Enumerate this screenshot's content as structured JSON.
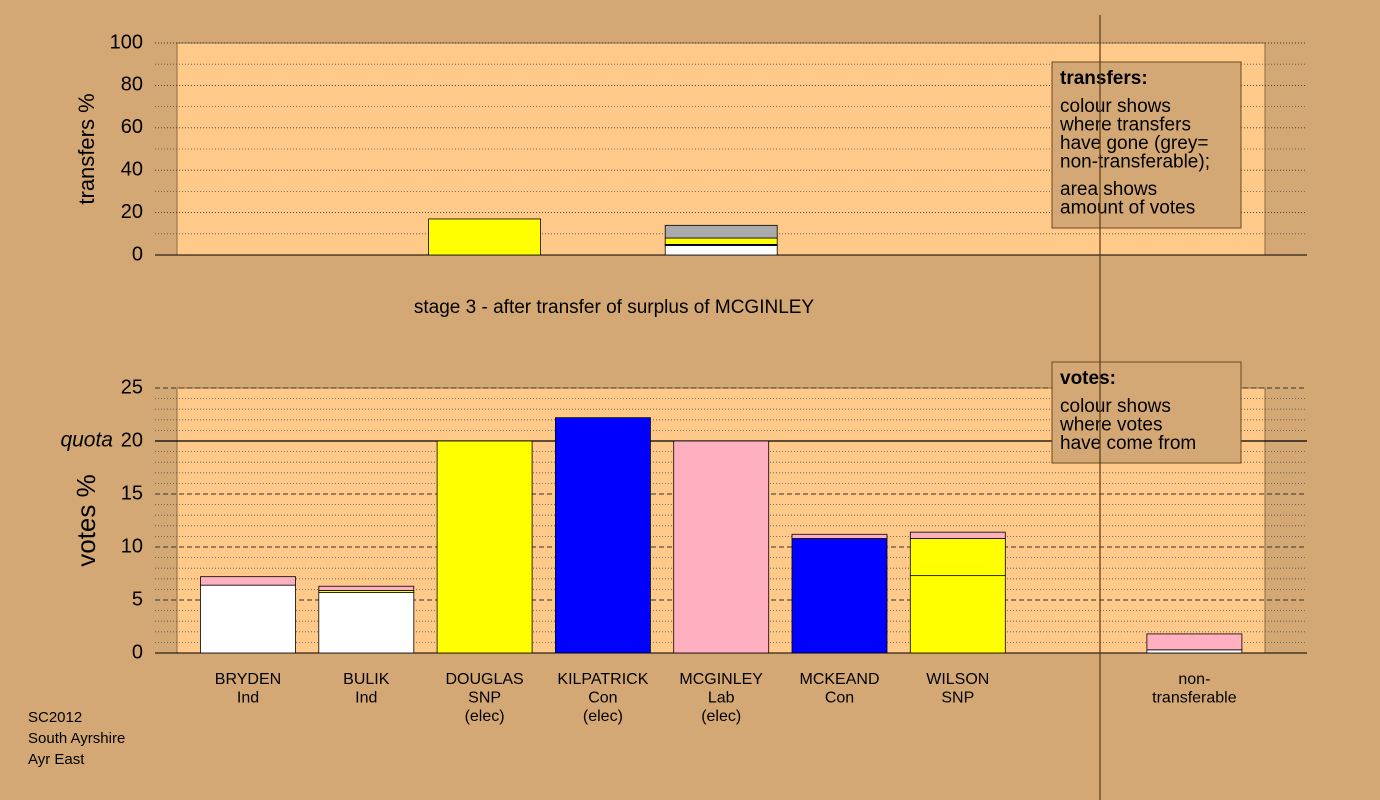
{
  "chart_data": [
    {
      "type": "stacked-bar",
      "ylabel": "transfers %",
      "ylim": [
        0,
        100
      ],
      "yticks": [
        0,
        20,
        40,
        60,
        80,
        100
      ],
      "minor_yticks": [
        10,
        30,
        50,
        70,
        90
      ],
      "values": [
        null,
        null,
        [
          17
        ],
        null,
        [
          4.5,
          0.5,
          3,
          6
        ],
        null,
        null,
        null,
        null
      ],
      "colors": [
        null,
        null,
        [
          "#ffff00"
        ],
        null,
        [
          "#ffffff",
          "#0000ff",
          "#ffff00",
          "#aaaaaa"
        ],
        null,
        null,
        null,
        null
      ],
      "note_title": "transfers:",
      "note_lines": [
        [
          "colour shows",
          "where transfers",
          "have gone (grey=",
          "non-transferable);"
        ],
        [
          "area shows",
          "amount of votes"
        ]
      ]
    },
    {
      "type": "stacked-bar",
      "title": "stage 3 - after transfer of surplus of MCGINLEY",
      "ylabel": "votes %",
      "ylim": [
        0,
        25
      ],
      "yticks": [
        0,
        5,
        10,
        15,
        20,
        25
      ],
      "minor_yticks": [
        1,
        2,
        3,
        4,
        6,
        7,
        8,
        9,
        11,
        12,
        13,
        14,
        16,
        17,
        18,
        19,
        21,
        22,
        23,
        24
      ],
      "quota": 20,
      "quota_label": "quota",
      "categories": [
        [
          "BRYDEN",
          "Ind"
        ],
        [
          "BULIK",
          "Ind"
        ],
        [
          "DOUGLAS",
          "SNP",
          "(elec)"
        ],
        [
          "KILPATRICK",
          "Con",
          "(elec)"
        ],
        [
          "MCGINLEY",
          "Lab",
          "(elec)"
        ],
        [
          "MCKEAND",
          "Con"
        ],
        [
          "WILSON",
          "SNP"
        ],
        null,
        [
          "non-",
          "transferable"
        ]
      ],
      "values": [
        [
          6.4,
          0.8
        ],
        [
          5.7,
          0.2,
          0.4
        ],
        [
          20
        ],
        [
          22.2
        ],
        [
          20
        ],
        [
          10.8,
          0.4
        ],
        [
          7.3,
          3.5,
          0.6
        ],
        null,
        [
          0.3,
          1.5
        ]
      ],
      "colors": [
        [
          "#ffffff",
          "#ffb0c0"
        ],
        [
          "#ffffff",
          "#ffff00",
          "#ffb0c0"
        ],
        [
          "#ffff00"
        ],
        [
          "#0000ff"
        ],
        [
          "#ffb0c0"
        ],
        [
          "#0000ff",
          "#ffb0c0"
        ],
        [
          "#ffff00",
          "#ffff00",
          "#ffb0c0"
        ],
        null,
        [
          "#ffffff",
          "#ffb0c0"
        ]
      ],
      "note_title": "votes:",
      "note_lines": [
        [
          "colour shows",
          "where votes",
          "have come from"
        ]
      ]
    }
  ],
  "footer": [
    "SC2012",
    "South Ayrshire",
    "Ayr East"
  ]
}
